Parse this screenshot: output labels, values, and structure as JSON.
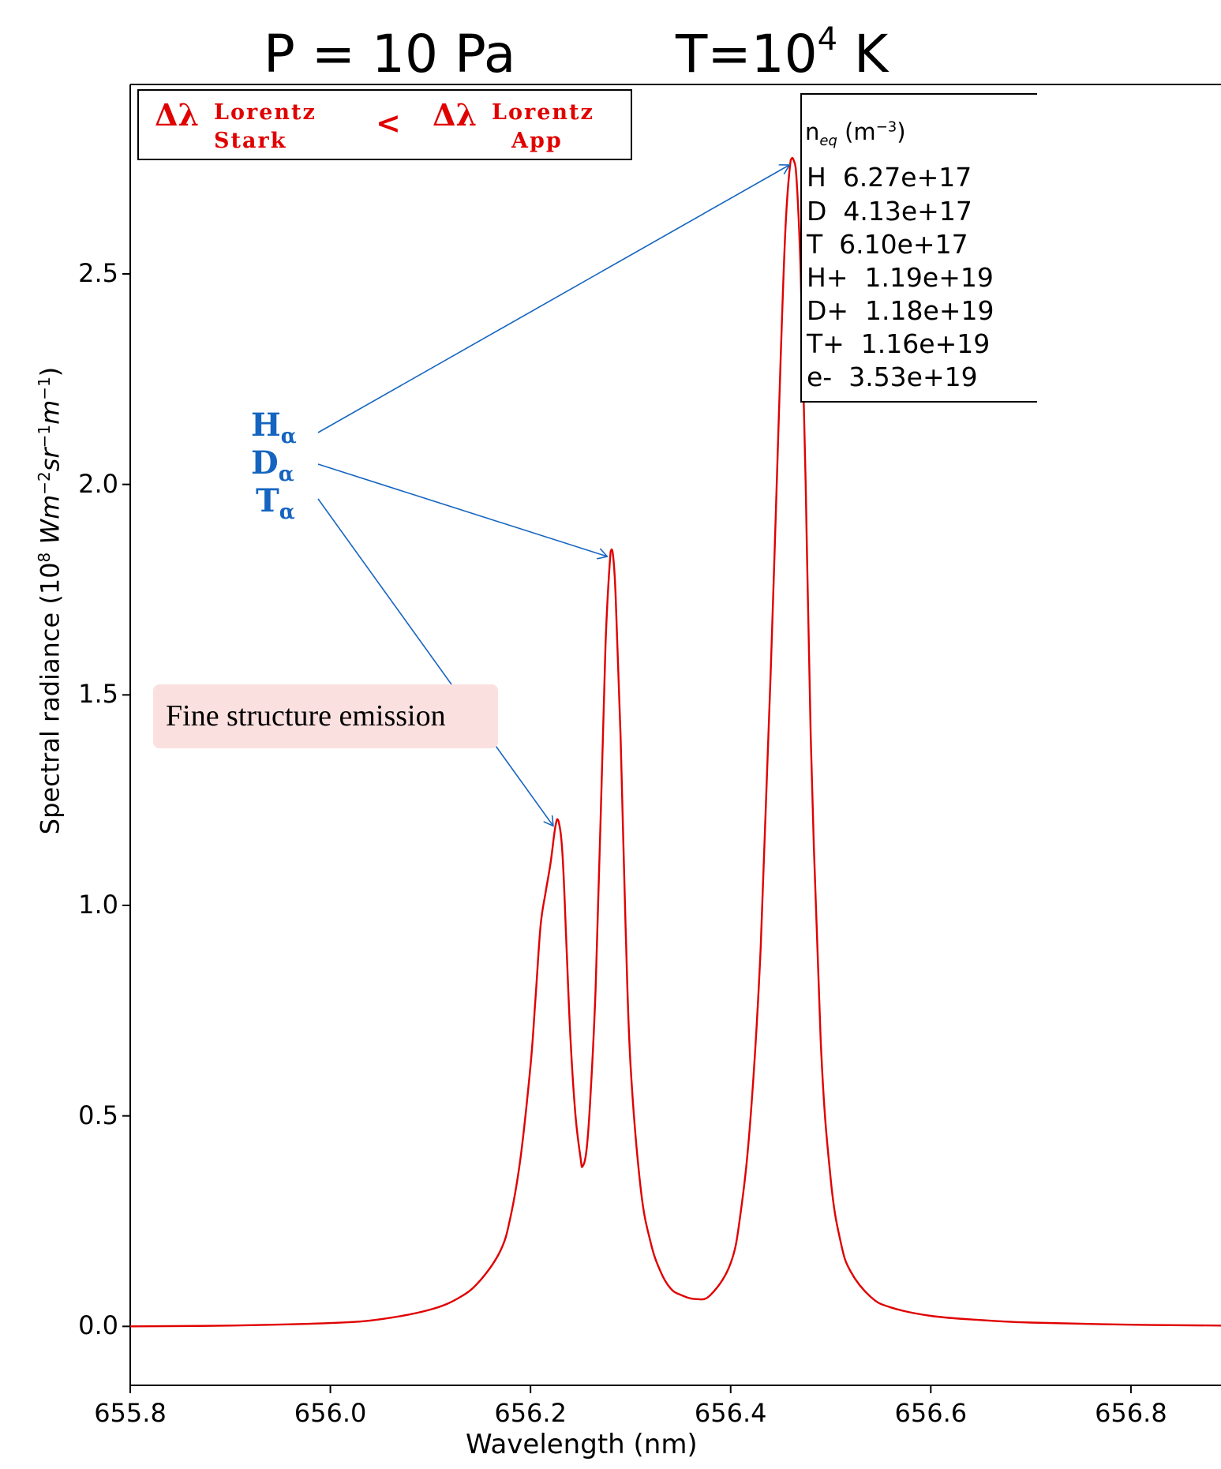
{
  "title": {
    "pressure": "P = 10 Pa",
    "temperature_base": "T=10",
    "temperature_exp": "4",
    "temperature_unit": " K"
  },
  "axes": {
    "ylabel_main": "Spectral radiance (10",
    "ylabel_exp": "8",
    "ylabel_unit_parts": [
      "Wm",
      "−2",
      "sr",
      "−1",
      "m",
      "−1",
      ")"
    ],
    "xlabel": "Wavelength (nm)"
  },
  "comparison": {
    "left_symbol": "Δλ",
    "left_sup": "Lorentz",
    "left_sub": "Stark",
    "operator": "<",
    "right_symbol": "Δλ",
    "right_sup": "Lorentz",
    "right_sub": "App"
  },
  "legend": {
    "title_n": "n",
    "title_sub": "eq",
    "title_unit": "(m",
    "title_exp": "−3",
    "title_close": ")",
    "rows": [
      {
        "label": "H",
        "value": "6.27e+17"
      },
      {
        "label": "D",
        "value": "4.13e+17"
      },
      {
        "label": "T",
        "value": "6.10e+17"
      },
      {
        "label": "H+",
        "value": "1.19e+19"
      },
      {
        "label": "D+",
        "value": "1.18e+19"
      },
      {
        "label": "T+",
        "value": "1.16e+19"
      },
      {
        "label": "e-",
        "value": "3.53e+19"
      }
    ]
  },
  "isotopes": [
    {
      "letter": "H",
      "sub": "α"
    },
    {
      "letter": "D",
      "sub": "α"
    },
    {
      "letter": "T",
      "sub": "α"
    }
  ],
  "annotation": {
    "fine_structure": "Fine structure emission"
  },
  "colors": {
    "line": "#e00000",
    "arrows": "#1565c0",
    "highlight": "#fbe0e0",
    "comparison_text": "#e00000"
  },
  "chart_data": {
    "type": "line",
    "xlabel": "Wavelength (nm)",
    "ylabel": "Spectral radiance (10^8 Wm^-2 sr^-1 m^-1)",
    "xlim": [
      655.8,
      656.89
    ],
    "ylim": [
      -0.14,
      2.95
    ],
    "xticks": [
      655.8,
      656.0,
      656.2,
      656.4,
      656.6,
      656.8
    ],
    "xtick_labels": [
      "655.8",
      "656.0",
      "656.2",
      "656.4",
      "656.6",
      "656.8"
    ],
    "yticks": [
      0.0,
      0.5,
      1.0,
      1.5,
      2.0,
      2.5
    ],
    "ytick_labels": [
      "0.0",
      "0.5",
      "1.0",
      "1.5",
      "2.0",
      "2.5"
    ],
    "grid": false,
    "series": [
      {
        "x": [
          655.8,
          655.9,
          656.0,
          656.05,
          656.1,
          656.13,
          656.15,
          656.17,
          656.18,
          656.19,
          656.2,
          656.205,
          656.21,
          656.215,
          656.22,
          656.225,
          656.228,
          656.232,
          656.236,
          656.24,
          656.245,
          656.25,
          656.252,
          656.256,
          656.26,
          656.265,
          656.27,
          656.275,
          656.28,
          656.282,
          656.285,
          656.29,
          656.295,
          656.3,
          656.31,
          656.32,
          656.33,
          656.34,
          656.35,
          656.365,
          656.38,
          656.4,
          656.41,
          656.42,
          656.43,
          656.44,
          656.45,
          656.455,
          656.46,
          656.463,
          656.466,
          656.47,
          656.475,
          656.48,
          656.49,
          656.5,
          656.51,
          656.52,
          656.54,
          656.56,
          656.6,
          656.65,
          656.7,
          656.8,
          656.89
        ],
        "y": [
          0.0,
          0.002,
          0.008,
          0.017,
          0.04,
          0.07,
          0.11,
          0.18,
          0.26,
          0.4,
          0.62,
          0.78,
          0.95,
          1.03,
          1.1,
          1.19,
          1.2,
          1.12,
          0.9,
          0.68,
          0.5,
          0.4,
          0.38,
          0.42,
          0.55,
          0.8,
          1.2,
          1.62,
          1.84,
          1.84,
          1.74,
          1.4,
          0.95,
          0.62,
          0.33,
          0.2,
          0.13,
          0.09,
          0.075,
          0.065,
          0.075,
          0.15,
          0.27,
          0.5,
          0.9,
          1.55,
          2.3,
          2.62,
          2.77,
          2.77,
          2.72,
          2.5,
          2.0,
          1.4,
          0.68,
          0.35,
          0.2,
          0.13,
          0.07,
          0.045,
          0.025,
          0.015,
          0.009,
          0.004,
          0.002
        ]
      }
    ],
    "annotations": [
      "Hα",
      "Dα",
      "Tα",
      "Fine structure emission"
    ]
  }
}
